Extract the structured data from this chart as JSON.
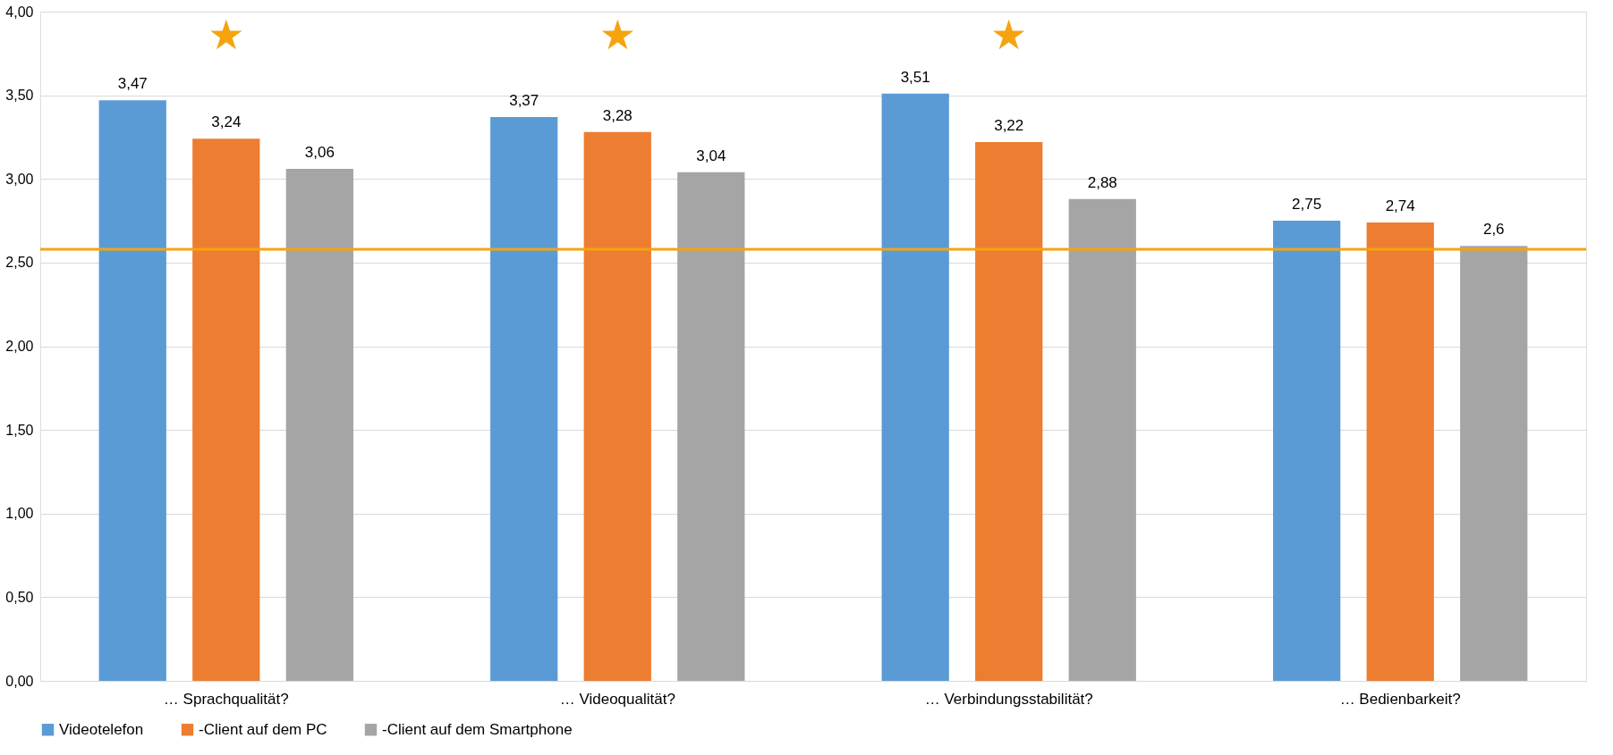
{
  "chart_data": {
    "type": "bar",
    "categories": [
      "… Sprachqualität?",
      "… Videoqualität?",
      "… Verbindungsstabilität?",
      "… Bedienbarkeit?"
    ],
    "series": [
      {
        "name": "Videotelefon",
        "color": "#5b9bd5",
        "values": [
          3.47,
          3.37,
          3.51,
          2.75
        ],
        "value_labels": [
          "3,47",
          "3,37",
          "3,51",
          "2,75"
        ]
      },
      {
        "name": "-Client auf dem PC",
        "color": "#ed7d31",
        "values": [
          3.24,
          3.28,
          3.22,
          2.74
        ],
        "value_labels": [
          "3,24",
          "3,28",
          "3,22",
          "2,74"
        ]
      },
      {
        "name": "-Client auf dem Smartphone",
        "color": "#a5a5a5",
        "values": [
          3.06,
          3.04,
          2.88,
          2.6
        ],
        "value_labels": [
          "3,06",
          "3,04",
          "2,88",
          "2,6"
        ]
      }
    ],
    "ylim": [
      0,
      4
    ],
    "yticks": [
      {
        "value": 0,
        "label": "0,00"
      },
      {
        "value": 0.5,
        "label": "0,50"
      },
      {
        "value": 1,
        "label": "1,00"
      },
      {
        "value": 1.5,
        "label": "1,50"
      },
      {
        "value": 2,
        "label": "2,00"
      },
      {
        "value": 2.5,
        "label": "2,50"
      },
      {
        "value": 3,
        "label": "3,00"
      },
      {
        "value": 3.5,
        "label": "3,50"
      },
      {
        "value": 4,
        "label": "4,00"
      }
    ],
    "ref_lines": [
      {
        "axis": "y",
        "value": 2.58,
        "color": "#f5a30f"
      }
    ],
    "annotations": [
      "★",
      "★",
      "★"
    ],
    "grid": "y",
    "legend": "bottom"
  }
}
